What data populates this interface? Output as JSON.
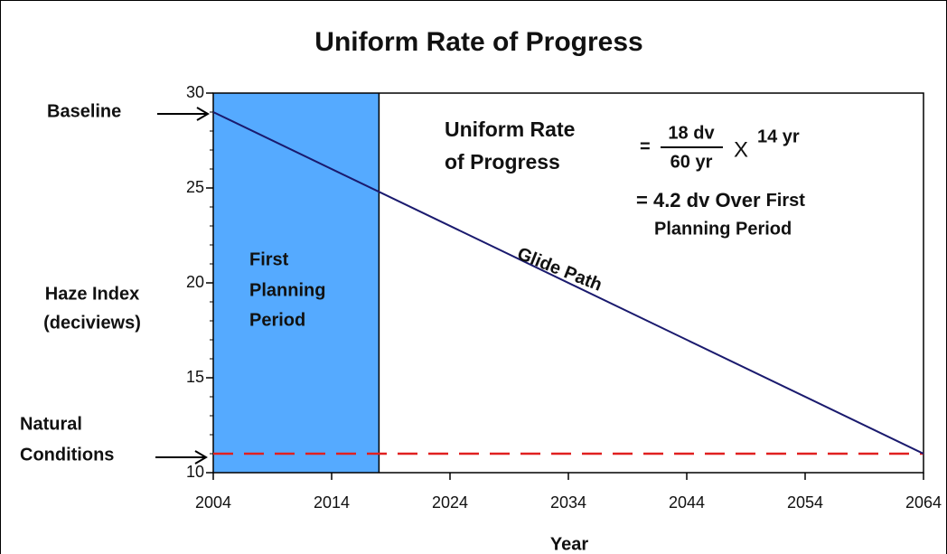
{
  "chart_data": {
    "type": "line",
    "title": "Uniform Rate of Progress",
    "xlabel": "Year",
    "ylabel": [
      "Haze Index",
      "(deciviews)"
    ],
    "xlim": [
      2004,
      2064
    ],
    "xticks": [
      2004,
      2014,
      2024,
      2034,
      2044,
      2054,
      2064
    ],
    "ylim": [
      10,
      30
    ],
    "yticks": [
      10,
      15,
      20,
      25,
      30
    ],
    "yminorticks": [
      11,
      12,
      13,
      14,
      16,
      17,
      18,
      19,
      21,
      22,
      23,
      24,
      26,
      27,
      28,
      29
    ],
    "series": [
      {
        "name": "Glide Path",
        "color": "#1a1a6e",
        "x": [
          2004,
          2064
        ],
        "values": [
          29,
          11
        ]
      }
    ],
    "reference_line": {
      "value": 11,
      "color": "#e02020",
      "dashed": true
    },
    "shaded_region": {
      "x": [
        2004,
        2018
      ],
      "color": "#55aaff"
    },
    "annotations": {
      "baseline": "Baseline",
      "natural": [
        "Natural",
        "Conditions"
      ],
      "period": [
        "First",
        "Planning",
        "Period"
      ],
      "urp": [
        "Uniform Rate",
        "of Progress"
      ],
      "eq_equals": "=",
      "numerator": "18 dv",
      "denominator": "60 yr",
      "times": "X",
      "years": "14 yr",
      "result": "= 4.2 dv Over",
      "result_first": "First",
      "result_line2": "Planning Period"
    }
  }
}
